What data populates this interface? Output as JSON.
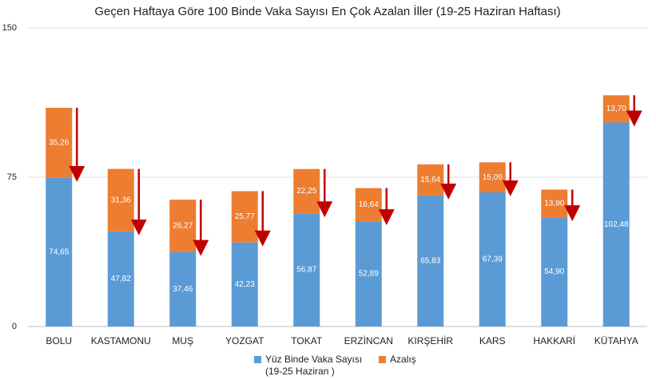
{
  "chart_data": {
    "type": "stacked_bar",
    "title": "Geçen Haftaya Göre 100 Binde Vaka Sayısı En Çok Azalan İller (19-25 Haziran Haftası)",
    "categories": [
      "BOLU",
      "KASTAMONU",
      "MUŞ",
      "YOZGAT",
      "TOKAT",
      "ERZİNCAN",
      "KIRŞEHİR",
      "KARS",
      "HAKKARİ",
      "KÜTAHYA"
    ],
    "series": [
      {
        "name": "Yüz Binde Vaka Sayısı (19-25 Haziran )",
        "color": "#5b9bd5",
        "values": [
          74.65,
          47.82,
          37.46,
          42.23,
          56.87,
          52.89,
          65.83,
          67.39,
          54.9,
          102.48
        ],
        "value_labels": [
          "74,65",
          "47,82",
          "37,46",
          "42,23",
          "56,87",
          "52,89",
          "65,83",
          "67,39",
          "54,90",
          "102,48"
        ]
      },
      {
        "name": "Azalış",
        "color": "#ed7d31",
        "values": [
          35.26,
          31.36,
          26.27,
          25.77,
          22.25,
          16.64,
          15.64,
          15.09,
          13.9,
          13.7
        ],
        "value_labels": [
          "35,26",
          "31,36",
          "26,27",
          "25,77",
          "22,25",
          "16,64",
          "15,64",
          "15,09",
          "13,90",
          "13,70"
        ]
      }
    ],
    "ylim": [
      0,
      150
    ],
    "yticks": [
      0,
      75,
      150
    ],
    "grid": true
  }
}
